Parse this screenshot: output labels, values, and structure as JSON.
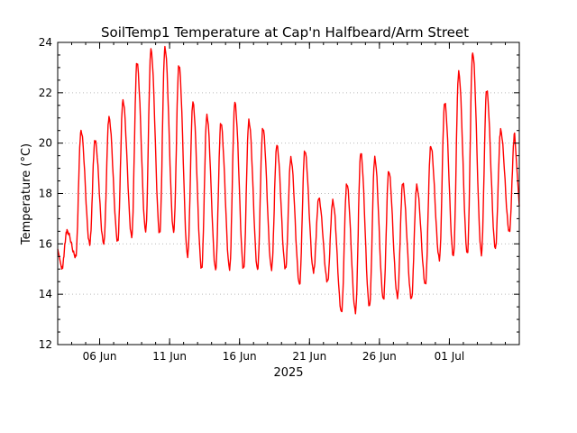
{
  "chart_data": {
    "type": "line",
    "title": "SoilTemp1 Temperature at Cap'n Halfbeard/Arm Street",
    "ylabel": "Temperature (°C)",
    "xlabel": "2025",
    "ylim": [
      12,
      24
    ],
    "yticks": [
      12,
      14,
      16,
      18,
      20,
      22,
      24
    ],
    "xlim": [
      "2025-06-03T00:00",
      "2025-07-06T00:00"
    ],
    "xticks": [
      {
        "date": "2025-06-06",
        "label": "06 Jun"
      },
      {
        "date": "2025-06-11",
        "label": "11 Jun"
      },
      {
        "date": "2025-06-16",
        "label": "16 Jun"
      },
      {
        "date": "2025-06-21",
        "label": "21 Jun"
      },
      {
        "date": "2025-06-26",
        "label": "26 Jun"
      },
      {
        "date": "2025-07-01",
        "label": "01 Jul"
      }
    ],
    "grid": "horizontal dotted",
    "line_color": "#ff0000",
    "series": [
      {
        "daily_min_max": [
          {
            "date": "2025-06-03",
            "min": 15.0,
            "max": 16.5
          },
          {
            "date": "2025-06-04",
            "min": 15.5,
            "max": 20.5
          },
          {
            "date": "2025-06-05",
            "min": 16.0,
            "max": 20.1
          },
          {
            "date": "2025-06-06",
            "min": 16.0,
            "max": 21.0
          },
          {
            "date": "2025-06-07",
            "min": 16.1,
            "max": 21.7
          },
          {
            "date": "2025-06-08",
            "min": 16.3,
            "max": 23.2
          },
          {
            "date": "2025-06-09",
            "min": 16.5,
            "max": 23.7
          },
          {
            "date": "2025-06-10",
            "min": 16.4,
            "max": 23.8
          },
          {
            "date": "2025-06-11",
            "min": 16.5,
            "max": 23.1
          },
          {
            "date": "2025-06-12",
            "min": 15.5,
            "max": 21.6
          },
          {
            "date": "2025-06-13",
            "min": 15.0,
            "max": 21.1
          },
          {
            "date": "2025-06-14",
            "min": 15.0,
            "max": 20.8
          },
          {
            "date": "2025-06-15",
            "min": 15.0,
            "max": 21.6
          },
          {
            "date": "2025-06-16",
            "min": 15.0,
            "max": 20.9
          },
          {
            "date": "2025-06-17",
            "min": 15.0,
            "max": 20.6
          },
          {
            "date": "2025-06-18",
            "min": 15.0,
            "max": 19.9
          },
          {
            "date": "2025-06-19",
            "min": 15.0,
            "max": 19.4
          },
          {
            "date": "2025-06-20",
            "min": 14.4,
            "max": 19.7
          },
          {
            "date": "2025-06-21",
            "min": 14.9,
            "max": 17.8
          },
          {
            "date": "2025-06-22",
            "min": 14.5,
            "max": 17.7
          },
          {
            "date": "2025-06-23",
            "min": 13.3,
            "max": 18.4
          },
          {
            "date": "2025-06-24",
            "min": 13.3,
            "max": 19.6
          },
          {
            "date": "2025-06-25",
            "min": 13.5,
            "max": 19.4
          },
          {
            "date": "2025-06-26",
            "min": 13.8,
            "max": 18.9
          },
          {
            "date": "2025-06-27",
            "min": 13.9,
            "max": 18.4
          },
          {
            "date": "2025-06-28",
            "min": 13.8,
            "max": 18.3
          },
          {
            "date": "2025-06-29",
            "min": 14.4,
            "max": 19.9
          },
          {
            "date": "2025-06-30",
            "min": 15.4,
            "max": 21.6
          },
          {
            "date": "2025-07-01",
            "min": 15.5,
            "max": 22.8
          },
          {
            "date": "2025-07-02",
            "min": 15.6,
            "max": 23.6
          },
          {
            "date": "2025-07-03",
            "min": 15.6,
            "max": 22.1
          },
          {
            "date": "2025-07-04",
            "min": 15.8,
            "max": 20.5
          },
          {
            "date": "2025-07-05",
            "min": 16.5,
            "max": 20.4
          }
        ]
      }
    ]
  }
}
